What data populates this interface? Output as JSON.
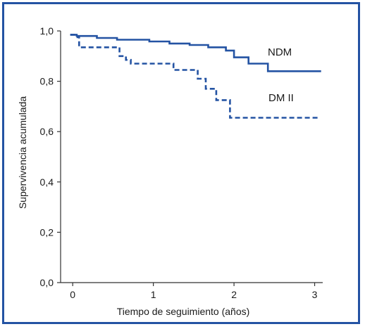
{
  "chart_data": {
    "type": "line",
    "title": "",
    "xlabel": "Tiempo de seguimiento (años)",
    "ylabel": "Supervivencia acumulada",
    "xlim": [
      -0.15,
      3.1
    ],
    "ylim": [
      0,
      1.0
    ],
    "x_ticks": [
      0,
      1,
      2,
      3
    ],
    "x_tick_labels": [
      "0",
      "1",
      "2",
      "3"
    ],
    "y_ticks": [
      0,
      0.2,
      0.4,
      0.6,
      0.8,
      1.0
    ],
    "y_tick_labels": [
      "0,0",
      "0,2",
      "0,4",
      "0,6",
      "0,8",
      "1,0"
    ],
    "grid": false,
    "legend": "inline labels",
    "series": [
      {
        "name": "NDM",
        "style": "solid",
        "color": "#2453a3",
        "x": [
          -0.03,
          0.05,
          0.3,
          0.55,
          0.95,
          1.2,
          1.45,
          1.68,
          1.9,
          2.0,
          2.18,
          2.42,
          3.08
        ],
        "y": [
          0.985,
          0.98,
          0.972,
          0.965,
          0.958,
          0.95,
          0.944,
          0.935,
          0.922,
          0.895,
          0.87,
          0.84,
          0.84
        ]
      },
      {
        "name": "DM II",
        "style": "dashed",
        "color": "#2453a3",
        "x": [
          -0.03,
          0.06,
          0.08,
          0.58,
          0.66,
          0.72,
          1.25,
          1.55,
          1.65,
          1.78,
          1.95,
          3.05
        ],
        "y": [
          0.985,
          0.975,
          0.935,
          0.9,
          0.885,
          0.87,
          0.845,
          0.81,
          0.77,
          0.725,
          0.655,
          0.655
        ]
      }
    ],
    "annotations": [
      "NDM",
      "DM II"
    ]
  }
}
